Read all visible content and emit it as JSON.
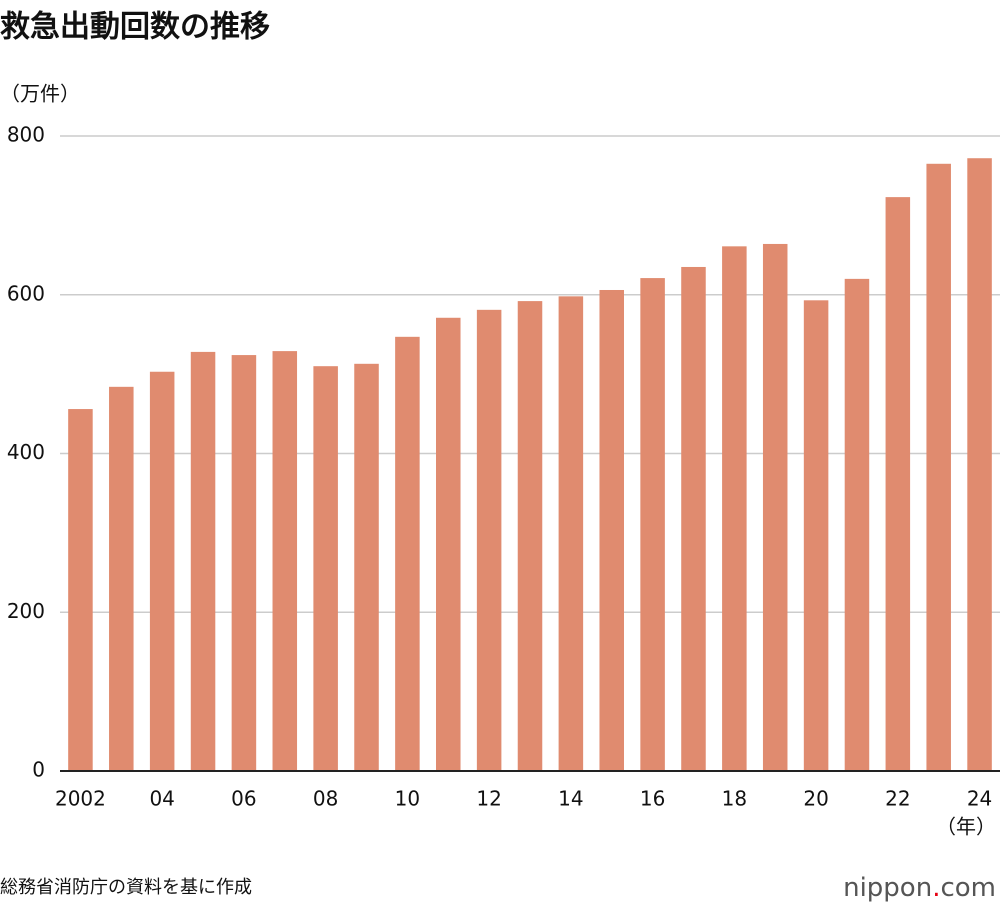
{
  "chart_data": {
    "type": "bar",
    "title": "救急出動回数の推移",
    "y_unit": "（万件）",
    "x_unit": "（年）",
    "source": "総務省消防庁の資料を基に作成",
    "logo": [
      "nippon",
      ".",
      "com"
    ],
    "categories": [
      "2002",
      null,
      "04",
      null,
      "06",
      null,
      "08",
      null,
      "10",
      null,
      "12",
      null,
      "14",
      null,
      "16",
      null,
      "18",
      null,
      "20",
      null,
      "22",
      null,
      "24"
    ],
    "values": [
      456,
      484,
      503,
      528,
      524,
      529,
      510,
      513,
      547,
      571,
      581,
      592,
      598,
      606,
      621,
      635,
      661,
      664,
      593,
      620,
      723,
      765,
      772
    ],
    "color": "#e08b6f",
    "ylim": [
      0,
      800
    ],
    "yticks": [
      0,
      200,
      400,
      600,
      800
    ],
    "grid": true
  }
}
